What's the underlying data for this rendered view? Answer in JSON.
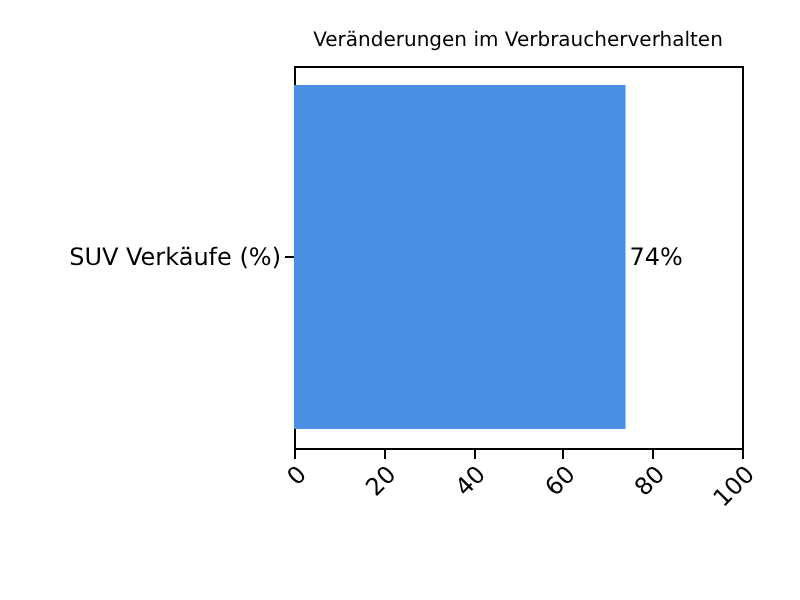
{
  "chart_data": {
    "type": "bar",
    "orientation": "horizontal",
    "title": "Veränderungen im Verbraucherverhalten",
    "categories": [
      "SUV Verkäufe (%)"
    ],
    "values": [
      74
    ],
    "value_labels": [
      "74%"
    ],
    "color": "#4a90e2",
    "xlim": [
      0,
      100
    ],
    "xticks": [
      0,
      20,
      40,
      60,
      80,
      100
    ],
    "grid": false
  }
}
